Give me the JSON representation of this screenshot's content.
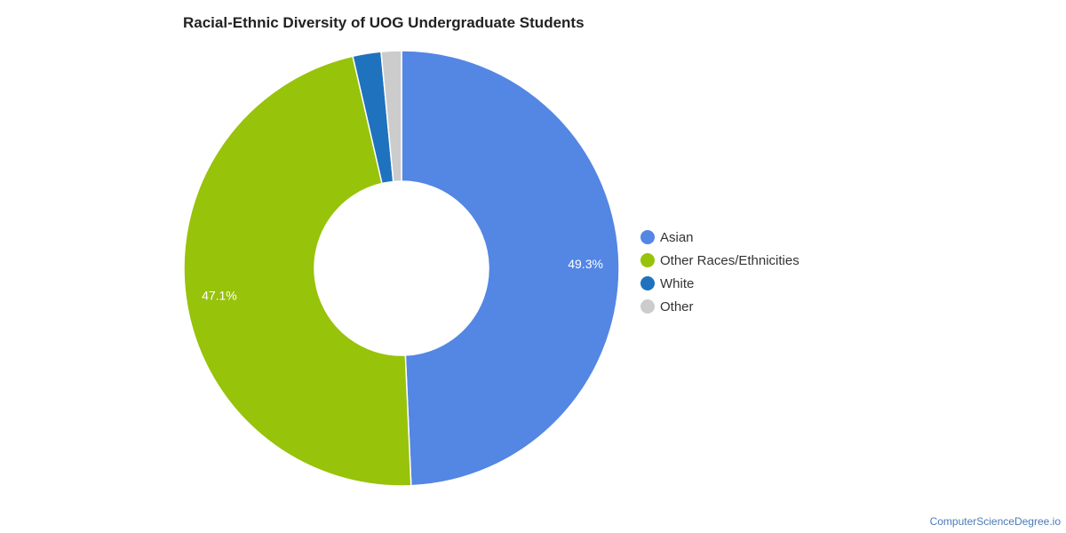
{
  "chart_data": {
    "type": "pie",
    "title": "Racial-Ethnic Diversity of UOG Undergraduate Students",
    "donut": true,
    "legend_position": "right",
    "categories": [
      "Asian",
      "Other Races/Ethnicities",
      "White",
      "Other"
    ],
    "values": [
      49.3,
      47.1,
      2.1,
      1.5
    ],
    "colors": [
      "#5486e3",
      "#97c30a",
      "#1f72bd",
      "#cccccc"
    ],
    "data_labels": [
      "49.3%",
      "47.1%",
      "",
      ""
    ]
  },
  "footer": {
    "source": "ComputerScienceDegree.io"
  }
}
